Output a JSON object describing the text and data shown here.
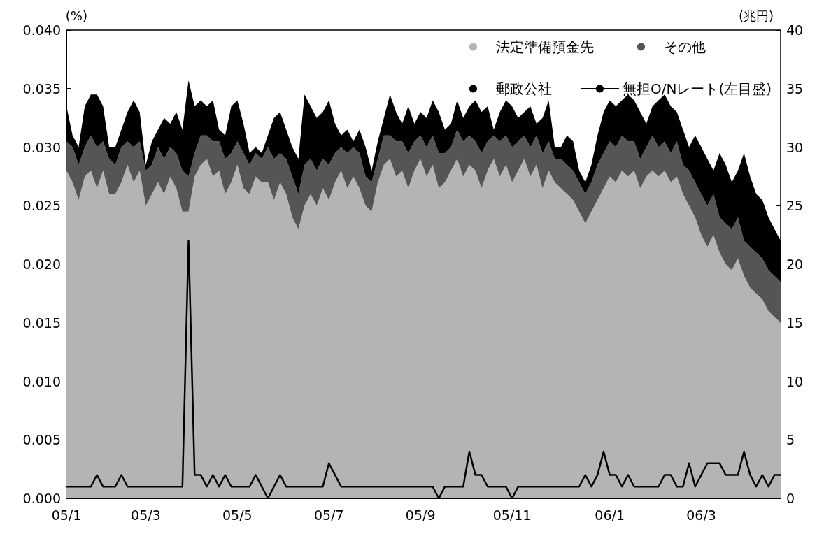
{
  "chart_data": {
    "type": "area",
    "stacked": true,
    "legend": "top right",
    "marker": "none",
    "grid": false,
    "ylabel": "(%)",
    "y2label": "(兆円)",
    "ylim": [
      0,
      0.04
    ],
    "yticks": [
      {
        "value": 0,
        "label": "0.000"
      },
      {
        "value": 0.005,
        "label": "0.005"
      },
      {
        "value": 0.01,
        "label": "0.010"
      },
      {
        "value": 0.015,
        "label": "0.015"
      },
      {
        "value": 0.02,
        "label": "0.020"
      },
      {
        "value": 0.025,
        "label": "0.025"
      },
      {
        "value": 0.03,
        "label": "0.030"
      },
      {
        "value": 0.035,
        "label": "0.035"
      },
      {
        "value": 0.04,
        "label": "0.040"
      }
    ],
    "y2lim": [
      0,
      40
    ],
    "y2ticks": [
      0,
      5,
      10,
      15,
      20,
      25,
      30,
      35,
      40
    ],
    "categories": [
      "05/1",
      null,
      null,
      null,
      null,
      null,
      null,
      null,
      null,
      null,
      null,
      null,
      null,
      "05/3",
      null,
      null,
      null,
      null,
      null,
      null,
      null,
      null,
      null,
      null,
      null,
      null,
      null,
      null,
      "05/5",
      null,
      null,
      null,
      null,
      null,
      null,
      null,
      null,
      null,
      null,
      null,
      null,
      null,
      null,
      "05/7",
      null,
      null,
      null,
      null,
      null,
      null,
      null,
      null,
      null,
      null,
      null,
      null,
      null,
      null,
      "05/9",
      null,
      null,
      null,
      null,
      null,
      null,
      null,
      null,
      null,
      null,
      null,
      null,
      null,
      null,
      "05/11",
      null,
      null,
      null,
      null,
      null,
      null,
      null,
      null,
      null,
      null,
      null,
      null,
      null,
      null,
      null,
      "06/1",
      null,
      null,
      null,
      null,
      null,
      null,
      null,
      null,
      null,
      null,
      null,
      null,
      null,
      null,
      "06/3",
      null,
      null,
      null,
      null,
      null,
      null,
      null,
      null,
      null,
      null,
      null,
      null,
      null
    ],
    "series": [
      {
        "name": "法定準備預金先",
        "color": "#b4b4b4",
        "axis": "y2",
        "values": [
          28,
          27,
          25.5,
          27.5,
          28,
          26.5,
          28,
          26,
          26,
          27,
          28.5,
          27,
          28,
          25,
          26,
          27,
          26,
          27.5,
          26.5,
          24.5,
          24.5,
          27.5,
          28.5,
          29,
          27.5,
          28,
          26,
          27,
          28.5,
          26.5,
          26,
          27.5,
          27,
          27,
          25.5,
          27,
          26,
          24,
          23,
          25,
          26,
          25,
          26.5,
          25.5,
          27,
          28,
          26.5,
          27.5,
          26.5,
          25,
          24.5,
          27,
          28.5,
          29,
          27.5,
          28,
          26.5,
          28,
          29,
          27.5,
          28.5,
          26.5,
          27,
          28,
          29,
          27.5,
          28.5,
          28,
          26.5,
          28,
          29,
          27.5,
          28.5,
          27,
          28,
          29,
          27.5,
          28.5,
          26.5,
          28,
          27,
          26.5,
          26,
          25.5,
          24.5,
          23.5,
          24.5,
          25.5,
          26.5,
          27.5,
          27,
          28,
          27.5,
          28,
          26.5,
          27.5,
          28,
          27.5,
          28,
          27,
          27.5,
          26,
          25,
          24,
          22.5,
          21.5,
          22.5,
          21,
          20,
          19.5,
          20.5,
          19,
          18,
          17.5,
          17,
          16,
          15.5,
          15
        ]
      },
      {
        "name": "その他",
        "color": "#555555",
        "axis": "y2",
        "values": [
          2.5,
          3,
          3,
          2.5,
          3,
          3.5,
          2.5,
          3,
          2.5,
          3,
          2,
          3,
          2.5,
          3,
          2.5,
          3,
          3,
          2.5,
          3,
          3.5,
          3,
          2,
          2.5,
          2,
          3,
          2.5,
          3,
          2.5,
          2,
          3,
          2.5,
          2,
          2,
          3,
          3.5,
          2.5,
          3,
          3.5,
          3,
          3.5,
          3,
          3,
          2.5,
          3,
          2.5,
          2,
          3,
          2.5,
          3,
          2.5,
          2.5,
          2,
          2.5,
          2,
          3,
          2.5,
          3,
          2.5,
          2,
          2.5,
          2.5,
          3,
          2.5,
          2,
          2.5,
          3,
          2.5,
          2.5,
          3,
          2.5,
          2,
          3,
          2.5,
          3,
          2.5,
          2,
          2.5,
          2.5,
          3,
          2.5,
          2,
          2.5,
          2.5,
          2.5,
          2.5,
          2.5,
          2.5,
          3,
          3,
          3,
          3,
          3,
          3,
          2.5,
          2.5,
          2.5,
          3,
          2.5,
          2.5,
          2.5,
          3,
          2.5,
          3,
          3,
          3.5,
          3.5,
          3.5,
          3,
          3.5,
          3.5,
          3.5,
          3,
          3.5,
          3.5,
          3.5,
          3.5,
          3.5,
          3.5
        ]
      },
      {
        "name": "郵政公社",
        "color": "#000000",
        "axis": "y2",
        "values": [
          3,
          1,
          1.5,
          3.5,
          3.5,
          4.5,
          3,
          1,
          1.5,
          1.5,
          2.5,
          4,
          2.5,
          0.5,
          2,
          1.5,
          3.5,
          2,
          3.5,
          3.5,
          8.2,
          4,
          3,
          2.5,
          3.5,
          1,
          2,
          4,
          3.5,
          2.5,
          1,
          0.5,
          0.5,
          1,
          3.5,
          3.5,
          2.5,
          2.5,
          3,
          6,
          4.5,
          4.5,
          4,
          5.5,
          2.5,
          1,
          2,
          0.5,
          2,
          2.5,
          1,
          1.5,
          1.5,
          3.5,
          2.5,
          1.5,
          4,
          1.5,
          2,
          2.5,
          3,
          3.5,
          2,
          2,
          2.5,
          2,
          2.5,
          3.5,
          3.5,
          3,
          0.5,
          2.5,
          3,
          3.5,
          2,
          2,
          3.5,
          1,
          3,
          3.5,
          1,
          1,
          2.5,
          2.5,
          1,
          1,
          1.5,
          2.5,
          3.5,
          3.5,
          3.5,
          3,
          4,
          3.5,
          4,
          2,
          2.5,
          4,
          4,
          4,
          2.5,
          3,
          2,
          4,
          4,
          4,
          2,
          5.5,
          5,
          4,
          4,
          7.5,
          6,
          5,
          5,
          4.5,
          4,
          3.5
        ]
      },
      {
        "name": "無担O/Nレート(左目盛)",
        "type": "line",
        "color": "#000000",
        "axis": "y",
        "values": [
          0.001,
          0.001,
          0.001,
          0.001,
          0.001,
          0.002,
          0.001,
          0.001,
          0.001,
          0.002,
          0.001,
          0.001,
          0.001,
          0.001,
          0.001,
          0.001,
          0.001,
          0.001,
          0.001,
          0.001,
          0.022,
          0.002,
          0.002,
          0.001,
          0.002,
          0.001,
          0.002,
          0.001,
          0.001,
          0.001,
          0.001,
          0.002,
          0.001,
          0,
          0.001,
          0.002,
          0.001,
          0.001,
          0.001,
          0.001,
          0.001,
          0.001,
          0.001,
          0.003,
          0.002,
          0.001,
          0.001,
          0.001,
          0.001,
          0.001,
          0.001,
          0.001,
          0.001,
          0.001,
          0.001,
          0.001,
          0.001,
          0.001,
          0.001,
          0.001,
          0.001,
          0,
          0.001,
          0.001,
          0.001,
          0.001,
          0.004,
          0.002,
          0.002,
          0.001,
          0.001,
          0.001,
          0.001,
          0,
          0.001,
          0.001,
          0.001,
          0.001,
          0.001,
          0.001,
          0.001,
          0.001,
          0.001,
          0.001,
          0.001,
          0.002,
          0.001,
          0.002,
          0.004,
          0.002,
          0.002,
          0.001,
          0.002,
          0.001,
          0.001,
          0.001,
          0.001,
          0.001,
          0.002,
          0.002,
          0.001,
          0.001,
          0.003,
          0.001,
          0.002,
          0.003,
          0.003,
          0.003,
          0.002,
          0.002,
          0.002,
          0.004,
          0.002,
          0.001,
          0.002,
          0.001,
          0.002,
          0.002
        ]
      }
    ]
  }
}
